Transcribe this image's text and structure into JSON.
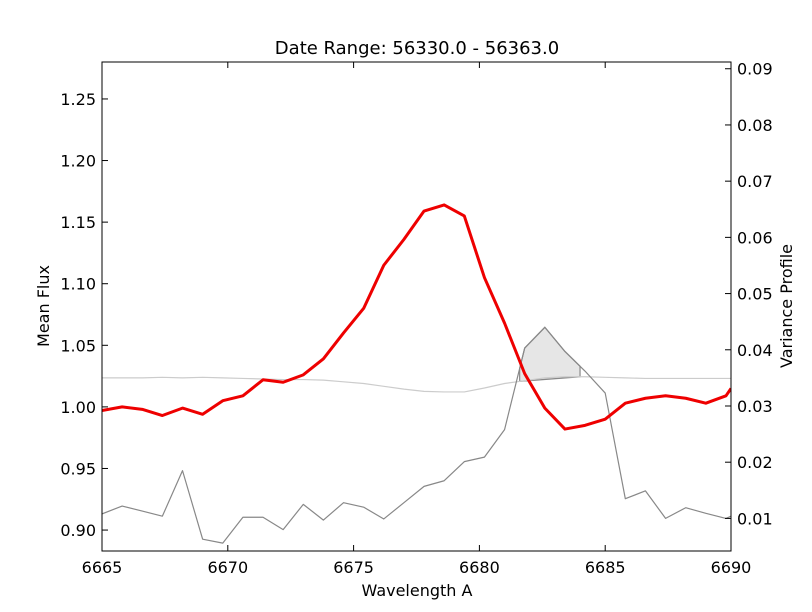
{
  "chart_data": {
    "type": "line",
    "title": "Date Range: 56330.0 - 56363.0",
    "xlabel": "Wavelength A",
    "ylabel_left": "Mean Flux",
    "ylabel_right": "Variance Profile",
    "xlim": [
      6665,
      6690
    ],
    "ylim_left": [
      0.883,
      1.28
    ],
    "ylim_right": [
      0.0042,
      0.0912
    ],
    "x_ticks": [
      "6665",
      "6670",
      "6675",
      "6680",
      "6685",
      "6690"
    ],
    "x_tick_values": [
      6665,
      6670,
      6675,
      6680,
      6685,
      6690
    ],
    "y_left_ticks": [
      "0.90",
      "0.95",
      "1.00",
      "1.05",
      "1.10",
      "1.15",
      "1.20",
      "1.25"
    ],
    "y_left_tick_values": [
      0.9,
      0.95,
      1.0,
      1.05,
      1.1,
      1.15,
      1.2,
      1.25
    ],
    "y_right_ticks": [
      "0.01",
      "0.02",
      "0.03",
      "0.04",
      "0.05",
      "0.06",
      "0.07",
      "0.08",
      "0.09"
    ],
    "y_right_tick_values": [
      0.01,
      0.02,
      0.03,
      0.04,
      0.05,
      0.06,
      0.07,
      0.08,
      0.09
    ],
    "grid": false,
    "x": [
      6665.0,
      6665.8,
      6666.6,
      6667.4,
      6668.2,
      6669.0,
      6669.8,
      6670.6,
      6671.4,
      6672.2,
      6673.0,
      6673.8,
      6674.6,
      6675.4,
      6676.2,
      6677.0,
      6677.8,
      6678.6,
      6679.4,
      6680.2,
      6681.0,
      6681.8,
      6682.6,
      6683.4,
      6684.2,
      6685.0,
      6685.8,
      6686.6,
      6687.4,
      6688.2,
      6689.0,
      6689.8,
      6690.0
    ],
    "series": [
      {
        "axis": "left",
        "color": "#ee0000",
        "values": [
          0.997,
          1.0,
          0.998,
          0.993,
          0.999,
          0.994,
          1.005,
          1.009,
          1.022,
          1.02,
          1.026,
          1.039,
          1.06,
          1.08,
          1.115,
          1.136,
          1.159,
          1.164,
          1.155,
          1.105,
          1.068,
          1.027,
          0.999,
          0.982,
          0.985,
          0.99,
          1.003,
          1.007,
          1.009,
          1.007,
          1.003,
          1.009,
          1.015
        ]
      },
      {
        "axis": "right",
        "color": "#888888",
        "values": [
          0.0108,
          0.0122,
          0.0113,
          0.0104,
          0.0185,
          0.0063,
          0.0056,
          0.0102,
          0.0102,
          0.008,
          0.0125,
          0.0097,
          0.0128,
          0.012,
          0.0099,
          0.0128,
          0.0157,
          0.0167,
          0.0201,
          0.0209,
          0.0258,
          0.0403,
          0.044,
          0.0397,
          0.0362,
          0.0323,
          0.0135,
          0.0149,
          0.01,
          0.0119,
          0.0109,
          0.01,
          0.0104
        ]
      },
      {
        "axis": "right",
        "color": "#cccccc",
        "values": [
          0.035,
          0.035,
          0.035,
          0.0351,
          0.035,
          0.0351,
          0.035,
          0.0349,
          0.0348,
          0.0347,
          0.0347,
          0.0346,
          0.0343,
          0.034,
          0.0335,
          0.033,
          0.0326,
          0.0325,
          0.0325,
          0.0332,
          0.034,
          0.0345,
          0.035,
          0.0352,
          0.0352,
          0.0351,
          0.035,
          0.0349,
          0.0349,
          0.0349,
          0.0349,
          0.0349,
          0.0349
        ]
      }
    ],
    "shaded_region": {
      "axis": "right",
      "x_range": [
        6681.6,
        6684.0
      ],
      "color": "#e6e6e6",
      "edge_color": "#888888"
    }
  }
}
